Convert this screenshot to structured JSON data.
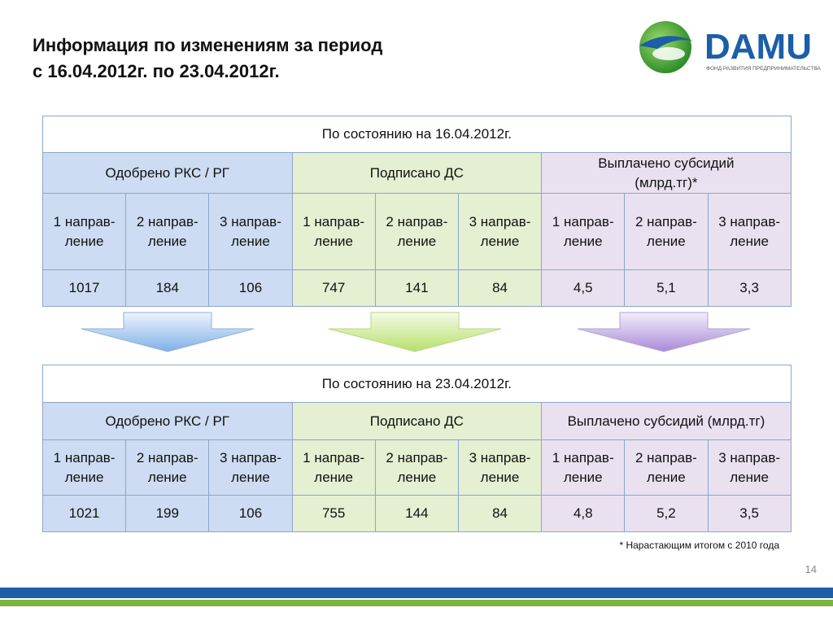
{
  "header": {
    "title_lines": [
      "Информация по изменениям за период",
      "с 16.04.2012г. по 23.04.2012г."
    ],
    "logo": {
      "name": "DAMU",
      "tagline": "ФОНД РАЗВИТИЯ ПРЕДПРИНИМАТЕЛЬСТВА"
    }
  },
  "tables": [
    {
      "caption": "По состоянию на 16.04.2012г.",
      "groups": [
        "Одобрено РКС / РГ",
        "Подписано ДС",
        "Выплачено субсидий\n(млрд.тг)*"
      ],
      "subheaders": [
        "1 направ-\nление",
        "2 направ-\nление",
        "3 направ-\nление",
        "1 направ-\nление",
        "2 направ-\nление",
        "3 направ-\nление",
        "1 направ-\nление",
        "2 направ-\nление",
        "3 направ-\nление"
      ],
      "values": [
        "1017",
        "184",
        "106",
        "747",
        "141",
        "84",
        "4,5",
        "5,1",
        "3,3"
      ]
    },
    {
      "caption": "По состоянию на 23.04.2012г.",
      "groups": [
        "Одобрено РКС / РГ",
        "Подписано ДС",
        "Выплачено субсидий (млрд.тг)"
      ],
      "subheaders": [
        "1 направ-\nление",
        "2 направ-\nление",
        "3 направ-\nление",
        "1 направ-\nление",
        "2 направ-\nление",
        "3 направ-\nление",
        "1 направ-\nление",
        "2 направ-\nление",
        "3 направ-\nление"
      ],
      "values": [
        "1021",
        "199",
        "106",
        "755",
        "144",
        "84",
        "4,8",
        "5,2",
        "3,5"
      ]
    }
  ],
  "footnote": "* Нарастающим итогом  с 2010 года",
  "page_number": "14"
}
